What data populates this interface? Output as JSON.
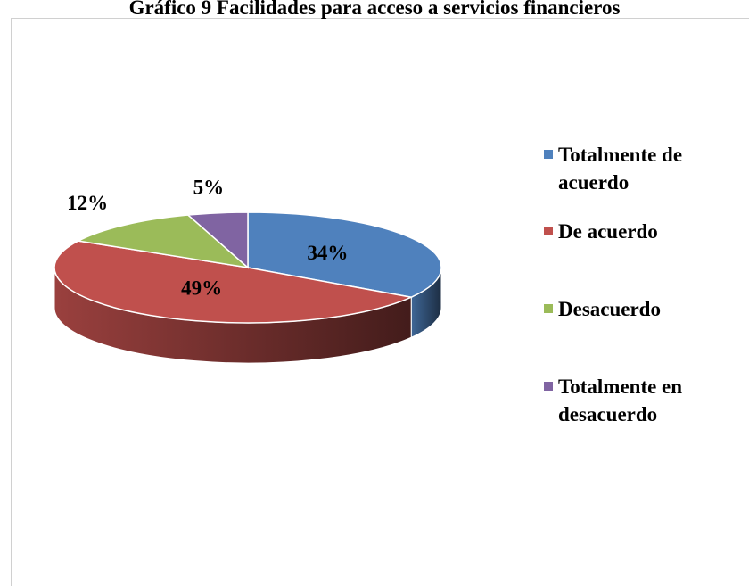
{
  "chart_data": {
    "type": "pie3d",
    "title": "Gráfico 9 Facilidades para acceso a servicios financieros",
    "categories": [
      "Totalmente de acuerdo",
      "De acuerdo",
      "Desacuerdo",
      "Totalmente en desacuerdo"
    ],
    "values": [
      34,
      49,
      12,
      5
    ],
    "value_labels": [
      "34%",
      "49%",
      "12%",
      "5%"
    ],
    "colors": [
      "#4f81bd",
      "#c0504d",
      "#9bbb59",
      "#8064a2"
    ],
    "legend": "right"
  }
}
